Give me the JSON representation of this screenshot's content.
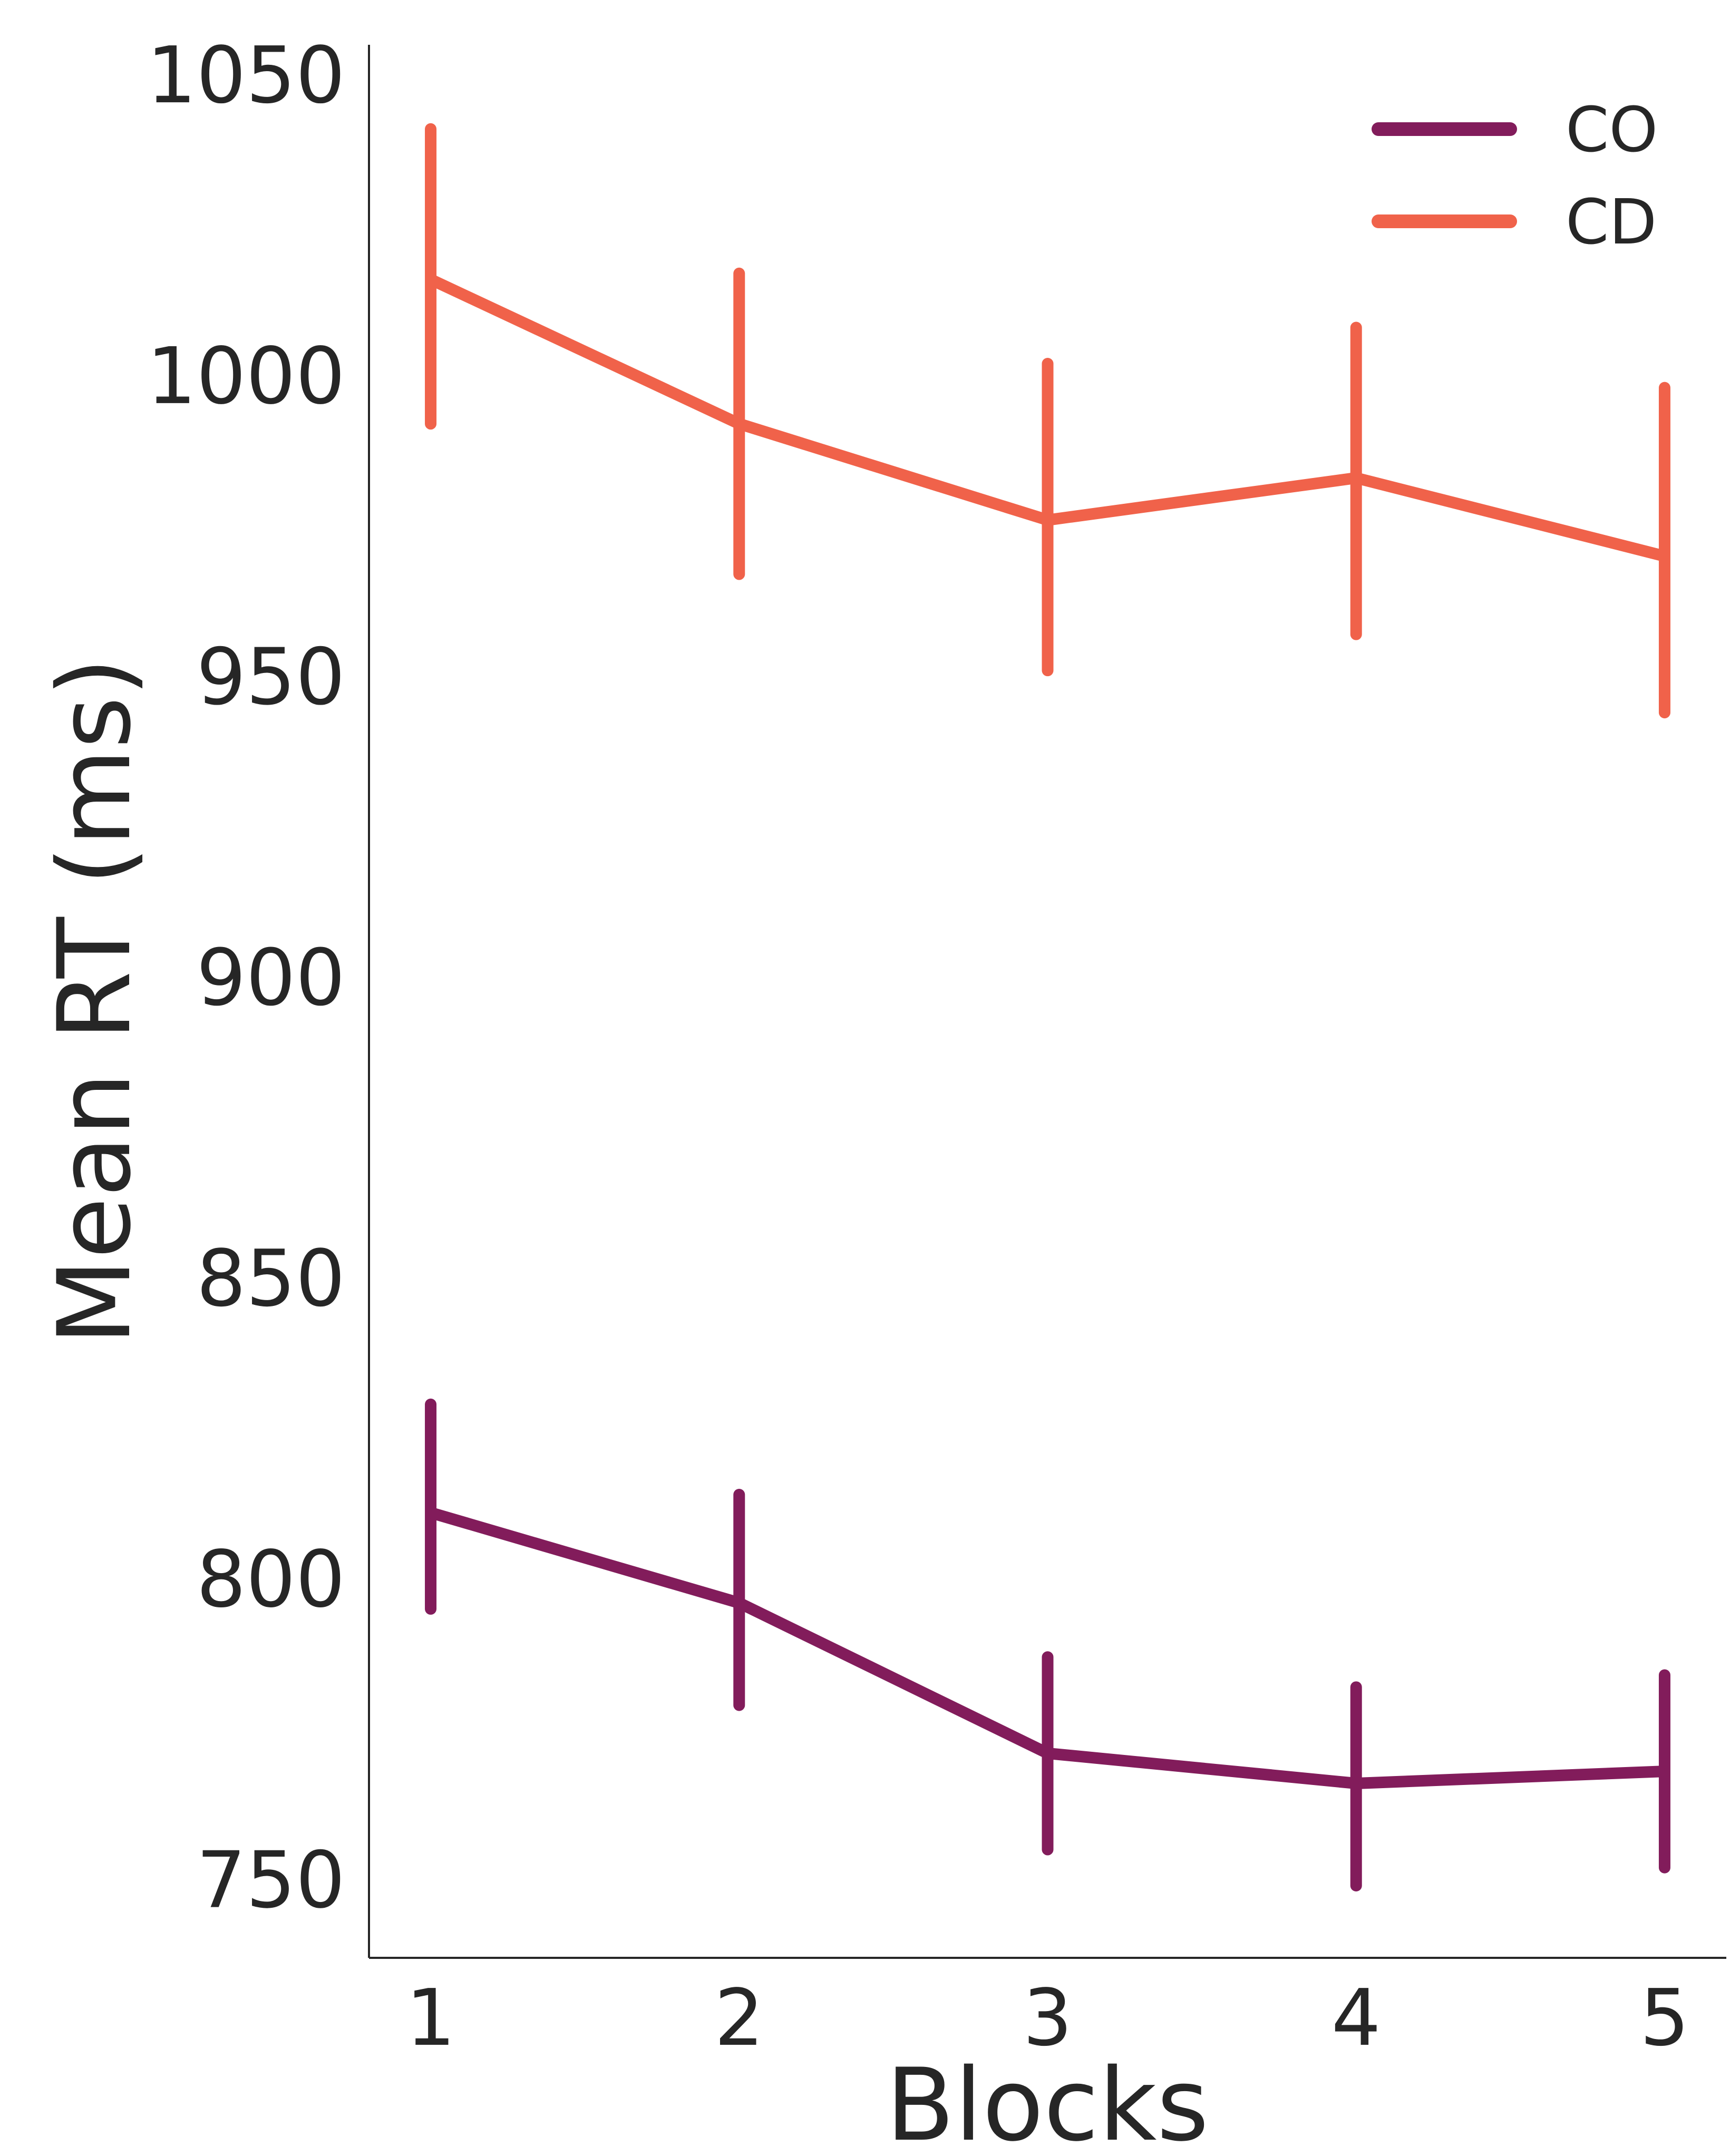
{
  "chart_data": {
    "type": "line",
    "title": "",
    "xlabel": "Blocks",
    "ylabel": "Mean RT (ms)",
    "categories": [
      "1",
      "2",
      "3",
      "4",
      "5"
    ],
    "x": [
      1,
      2,
      3,
      4,
      5
    ],
    "xlim": [
      0.8,
      5.2
    ],
    "ylim": [
      737,
      1055
    ],
    "yticks": [
      750,
      800,
      850,
      900,
      950,
      1000,
      1050
    ],
    "yticklabels": [
      "750",
      "800",
      "850",
      "900",
      "950",
      "1000",
      "1050"
    ],
    "grid": false,
    "legend_position": "top-right",
    "series": [
      {
        "name": "CO",
        "color": "#821c5b",
        "values": [
          811,
          796,
          771,
          766,
          768
        ],
        "error_low": [
          795,
          779,
          755,
          749,
          752
        ],
        "error_high": [
          829,
          814,
          787,
          782,
          784
        ]
      },
      {
        "name": "CD",
        "color": "#f0624a",
        "values": [
          1016,
          992,
          976,
          983,
          970
        ],
        "error_low": [
          992,
          967,
          951,
          957,
          944
        ],
        "error_high": [
          1041,
          1017,
          1002,
          1008,
          998
        ]
      }
    ]
  }
}
